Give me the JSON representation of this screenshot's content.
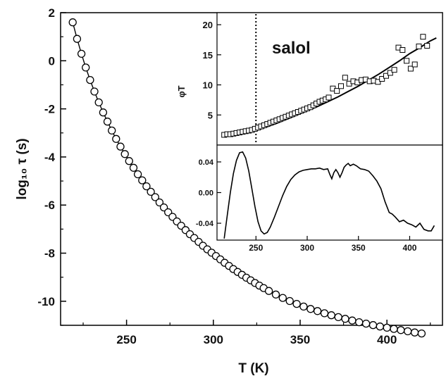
{
  "chart_data": [
    {
      "id": "main",
      "type": "scatter",
      "xlabel": "T  (K)",
      "ylabel": "log₁₀ τ (s)",
      "xlim": [
        212,
        432
      ],
      "ylim": [
        -11,
        2
      ],
      "xticks": [
        250,
        300,
        350,
        400
      ],
      "yticks": [
        2,
        0,
        -2,
        -4,
        -6,
        -8,
        -10
      ],
      "grid": false,
      "series": [
        {
          "marker": "open-circle",
          "with_line": true,
          "x": [
            219,
            221.5,
            224,
            226.5,
            229,
            231.5,
            234,
            236.5,
            239,
            241.5,
            244,
            246.5,
            249,
            251.5,
            254,
            256.5,
            259,
            261.5,
            264,
            266.5,
            269,
            271.5,
            274,
            276.5,
            279,
            281.5,
            284,
            286.5,
            289,
            291.5,
            294,
            296.5,
            299,
            301.5,
            304,
            306.5,
            309,
            311.5,
            314,
            316.5,
            319,
            321.5,
            324,
            326.5,
            329,
            332,
            336,
            340,
            344,
            348,
            352,
            356,
            360,
            364,
            368,
            372,
            376,
            380,
            384,
            388,
            392,
            396,
            400,
            404,
            408,
            412,
            416,
            420
          ],
          "y": [
            1.6,
            0.91,
            0.29,
            -0.28,
            -0.8,
            -1.28,
            -1.73,
            -2.15,
            -2.53,
            -2.9,
            -3.25,
            -3.57,
            -3.88,
            -4.17,
            -4.45,
            -4.72,
            -4.97,
            -5.22,
            -5.45,
            -5.67,
            -5.89,
            -6.1,
            -6.3,
            -6.49,
            -6.68,
            -6.86,
            -7.04,
            -7.21,
            -7.37,
            -7.53,
            -7.69,
            -7.84,
            -7.98,
            -8.12,
            -8.26,
            -8.4,
            -8.53,
            -8.66,
            -8.78,
            -8.9,
            -9.02,
            -9.13,
            -9.24,
            -9.35,
            -9.45,
            -9.57,
            -9.72,
            -9.86,
            -9.99,
            -10.11,
            -10.22,
            -10.32,
            -10.41,
            -10.5,
            -10.58,
            -10.66,
            -10.73,
            -10.8,
            -10.87,
            -10.93,
            -10.99,
            -11.05,
            -11.1,
            -11.15,
            -11.2,
            -11.25,
            -11.3,
            -11.34
          ]
        }
      ]
    },
    {
      "id": "inset-top",
      "type": "scatter",
      "annotation": "salol",
      "ylabel": "φT",
      "xlim": [
        212,
        432
      ],
      "ylim": [
        0,
        22
      ],
      "yticks": [
        5,
        10,
        15,
        20
      ],
      "vline_x": 250,
      "series": [
        {
          "marker": "open-square",
          "x": [
            219,
            222,
            225,
            228,
            231,
            234,
            237,
            240,
            243,
            246,
            249,
            252,
            255,
            258,
            261,
            264,
            267,
            270,
            273,
            276,
            279,
            282,
            285,
            288,
            291,
            294,
            297,
            300,
            303,
            306,
            309,
            312,
            315,
            318,
            321,
            325,
            329,
            333,
            337,
            341,
            345,
            349,
            353,
            357,
            361,
            365,
            369,
            373,
            377,
            381,
            385,
            389,
            393,
            397,
            401,
            405,
            409,
            413,
            417
          ],
          "y": [
            1.7,
            1.8,
            1.8,
            1.9,
            2.0,
            2.1,
            2.2,
            2.3,
            2.4,
            2.5,
            2.7,
            2.9,
            3.1,
            3.3,
            3.5,
            3.7,
            3.9,
            4.1,
            4.3,
            4.5,
            4.7,
            4.9,
            5.1,
            5.3,
            5.5,
            5.7,
            5.9,
            6.1,
            6.3,
            6.6,
            6.9,
            7.2,
            7.4,
            7.6,
            7.9,
            9.4,
            9.0,
            9.8,
            11.2,
            10.2,
            10.6,
            10.4,
            10.8,
            10.9,
            10.6,
            10.7,
            10.5,
            11.0,
            11.5,
            12.0,
            12.5,
            16.2,
            15.8,
            14.0,
            12.7,
            13.4,
            16.4,
            18.0,
            16.5
          ]
        },
        {
          "marker": "none",
          "x": [
            219,
            230,
            240,
            250,
            260,
            270,
            280,
            290,
            300,
            310,
            320,
            330,
            340,
            350,
            360,
            370,
            380,
            390,
            400,
            410,
            420,
            426
          ],
          "y": [
            1.6,
            1.8,
            2.0,
            2.4,
            3.0,
            3.6,
            4.3,
            5.0,
            5.7,
            6.4,
            7.2,
            8.0,
            8.9,
            9.8,
            10.8,
            11.8,
            12.9,
            14.0,
            15.2,
            16.2,
            17.3,
            17.8
          ]
        }
      ]
    },
    {
      "id": "inset-bottom",
      "type": "line",
      "xlabel": "",
      "xlim": [
        212,
        432
      ],
      "ylim": [
        -0.062,
        0.062
      ],
      "xticks": [
        250,
        300,
        350,
        400
      ],
      "yticks": [
        0.04,
        0.0,
        -0.04
      ],
      "ytick_labels": [
        "0.04",
        "0.00",
        "-0.04"
      ],
      "series": [
        {
          "x": [
            219,
            222,
            225,
            228,
            231,
            234,
            237,
            240,
            243,
            246,
            249,
            252,
            255,
            258,
            261,
            264,
            268,
            272,
            276,
            280,
            284,
            288,
            292,
            296,
            300,
            304,
            308,
            312,
            316,
            320,
            322,
            324,
            326,
            328,
            330,
            332,
            334,
            336,
            338,
            340,
            342,
            345,
            348,
            352,
            356,
            360,
            364,
            368,
            372,
            376,
            380,
            383,
            386,
            390,
            394,
            398,
            402,
            406,
            410,
            414,
            418,
            421,
            424
          ],
          "y": [
            -0.06,
            -0.03,
            0.0,
            0.025,
            0.042,
            0.052,
            0.053,
            0.045,
            0.028,
            0.005,
            -0.018,
            -0.038,
            -0.05,
            -0.054,
            -0.052,
            -0.045,
            -0.032,
            -0.018,
            -0.004,
            0.008,
            0.017,
            0.023,
            0.027,
            0.029,
            0.03,
            0.031,
            0.031,
            0.032,
            0.03,
            0.031,
            0.024,
            0.018,
            0.026,
            0.03,
            0.026,
            0.02,
            0.026,
            0.033,
            0.036,
            0.038,
            0.035,
            0.037,
            0.035,
            0.031,
            0.03,
            0.028,
            0.022,
            0.015,
            0.005,
            -0.012,
            -0.026,
            -0.028,
            -0.032,
            -0.038,
            -0.036,
            -0.04,
            -0.042,
            -0.045,
            -0.04,
            -0.048,
            -0.05,
            -0.05,
            -0.043
          ]
        }
      ]
    }
  ]
}
